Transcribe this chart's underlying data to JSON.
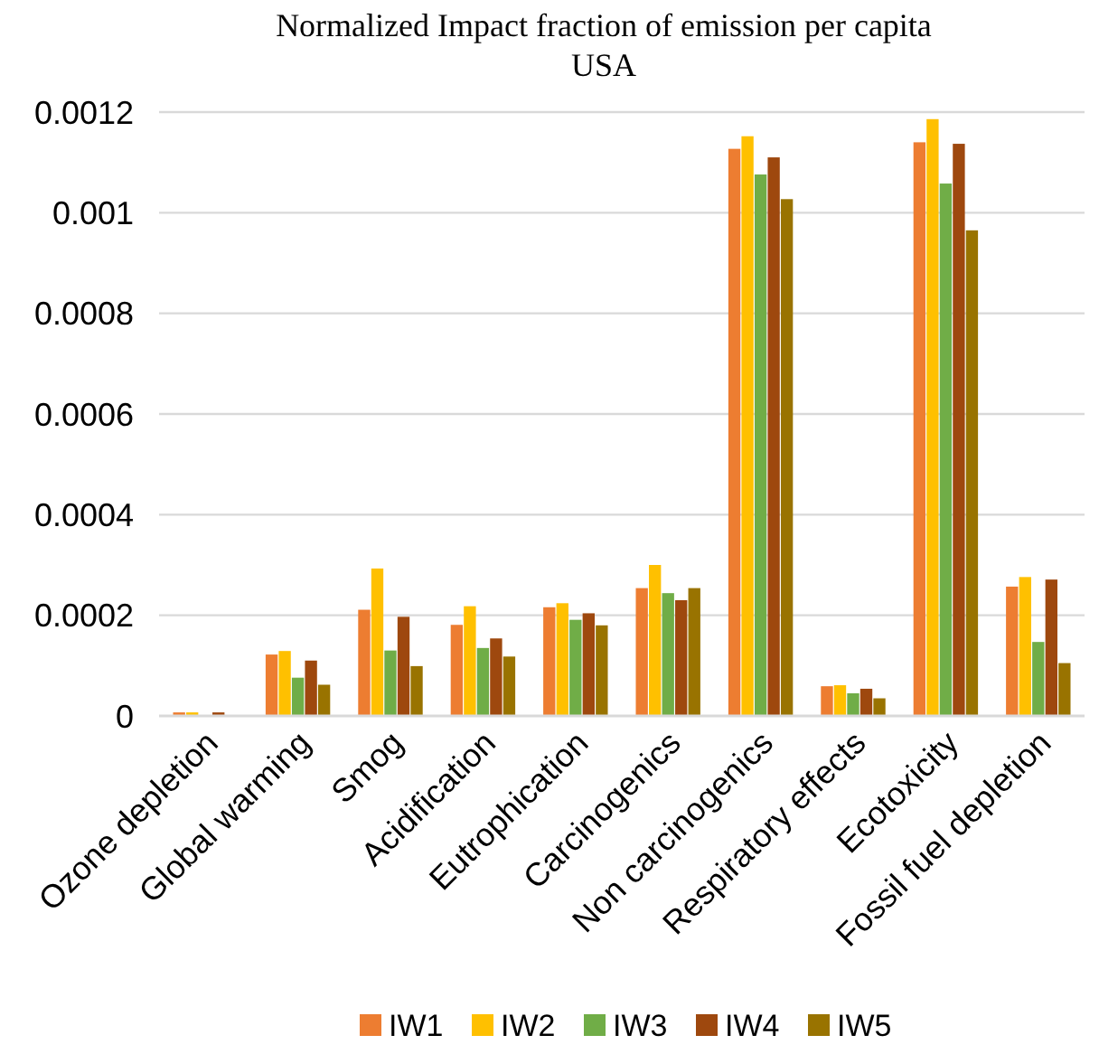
{
  "chart_data": {
    "type": "bar",
    "title": "Normalized Impact fraction of emission per capita",
    "subtitle": "USA",
    "categories": [
      "Ozone depletion",
      "Global warming",
      "Smog",
      "Acidification",
      "Eutrophication",
      "Carcinogenics",
      "Non carcinogenics",
      "Respiratory effects",
      "Ecotoxicity",
      "Fossil fuel depletion"
    ],
    "series": [
      {
        "name": "IW1",
        "color": "#ed7d31",
        "values": [
          7e-06,
          0.000122,
          0.000211,
          0.000181,
          0.000216,
          0.000254,
          0.001127,
          5.9e-05,
          0.00114,
          0.000257
        ]
      },
      {
        "name": "IW2",
        "color": "#ffc000",
        "values": [
          7e-06,
          0.000129,
          0.000293,
          0.000218,
          0.000224,
          0.0003,
          0.001152,
          6.1e-05,
          0.001186,
          0.000276
        ]
      },
      {
        "name": "IW3",
        "color": "#70ad47",
        "values": [
          null,
          7.6e-05,
          0.00013,
          0.000135,
          0.000191,
          0.000244,
          0.001076,
          4.5e-05,
          0.001058,
          0.000147
        ]
      },
      {
        "name": "IW4",
        "color": "#9e480e",
        "values": [
          7e-06,
          0.00011,
          0.000197,
          0.000154,
          0.000204,
          0.00023,
          0.00111,
          5.4e-05,
          0.001137,
          0.000271
        ]
      },
      {
        "name": "IW5",
        "color": "#997300",
        "values": [
          null,
          6.2e-05,
          9.9e-05,
          0.000118,
          0.00018,
          0.000254,
          0.001027,
          3.5e-05,
          0.000965,
          0.000105
        ]
      }
    ],
    "ylim": [
      0,
      0.0012
    ],
    "yticks": [
      0,
      0.0002,
      0.0004,
      0.0006,
      0.0008,
      0.001,
      0.0012
    ],
    "grid": "y",
    "legend": "bottom"
  }
}
